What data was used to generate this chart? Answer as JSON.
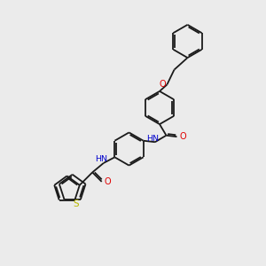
{
  "bg_color": "#ebebeb",
  "bond_color": "#1a1a1a",
  "atom_colors": {
    "O": "#e00000",
    "N": "#0000cc",
    "S": "#b8b800",
    "C": "#1a1a1a"
  },
  "lw": 1.3,
  "dbo": 0.055,
  "ring_r": 0.62,
  "th_r": 0.52
}
